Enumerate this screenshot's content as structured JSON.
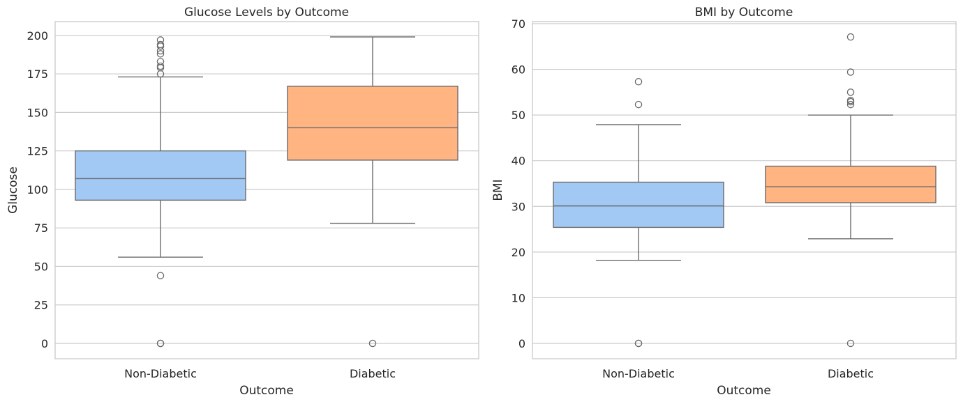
{
  "chart_data": [
    {
      "type": "box",
      "title": "Glucose Levels by Outcome",
      "xlabel": "Outcome",
      "ylabel": "Glucose",
      "categories": [
        "Non-Diabetic",
        "Diabetic"
      ],
      "ylim": [
        -9.95,
        208.95
      ],
      "yticks": [
        0,
        25,
        50,
        75,
        100,
        125,
        150,
        175,
        200
      ],
      "grid": true,
      "colors": [
        "#a1c9f4",
        "#ffb482"
      ],
      "boxes": [
        {
          "category": "Non-Diabetic",
          "q1": 93,
          "median": 107,
          "q3": 125,
          "whisker_low": 56,
          "whisker_high": 173,
          "fliers": [
            0,
            0,
            44,
            175,
            179,
            180,
            183,
            188,
            190,
            193,
            194,
            197
          ]
        },
        {
          "category": "Diabetic",
          "q1": 119,
          "median": 140,
          "q3": 167,
          "whisker_low": 78,
          "whisker_high": 199,
          "fliers": [
            0
          ]
        }
      ]
    },
    {
      "type": "box",
      "title": "BMI by Outcome",
      "xlabel": "Outcome",
      "ylabel": "BMI",
      "categories": [
        "Non-Diabetic",
        "Diabetic"
      ],
      "ylim": [
        -3.36,
        70.46
      ],
      "yticks": [
        0,
        10,
        20,
        30,
        40,
        50,
        60,
        70
      ],
      "grid": true,
      "colors": [
        "#a1c9f4",
        "#ffb482"
      ],
      "boxes": [
        {
          "category": "Non-Diabetic",
          "q1": 25.4,
          "median": 30.1,
          "q3": 35.3,
          "whisker_low": 18.2,
          "whisker_high": 47.9,
          "fliers": [
            0,
            0,
            52.3,
            57.3
          ]
        },
        {
          "category": "Diabetic",
          "q1": 30.8,
          "median": 34.3,
          "q3": 38.8,
          "whisker_low": 22.9,
          "whisker_high": 50.0,
          "fliers": [
            0,
            52.3,
            52.9,
            53.2,
            55.0,
            59.4,
            67.1
          ]
        }
      ]
    }
  ]
}
